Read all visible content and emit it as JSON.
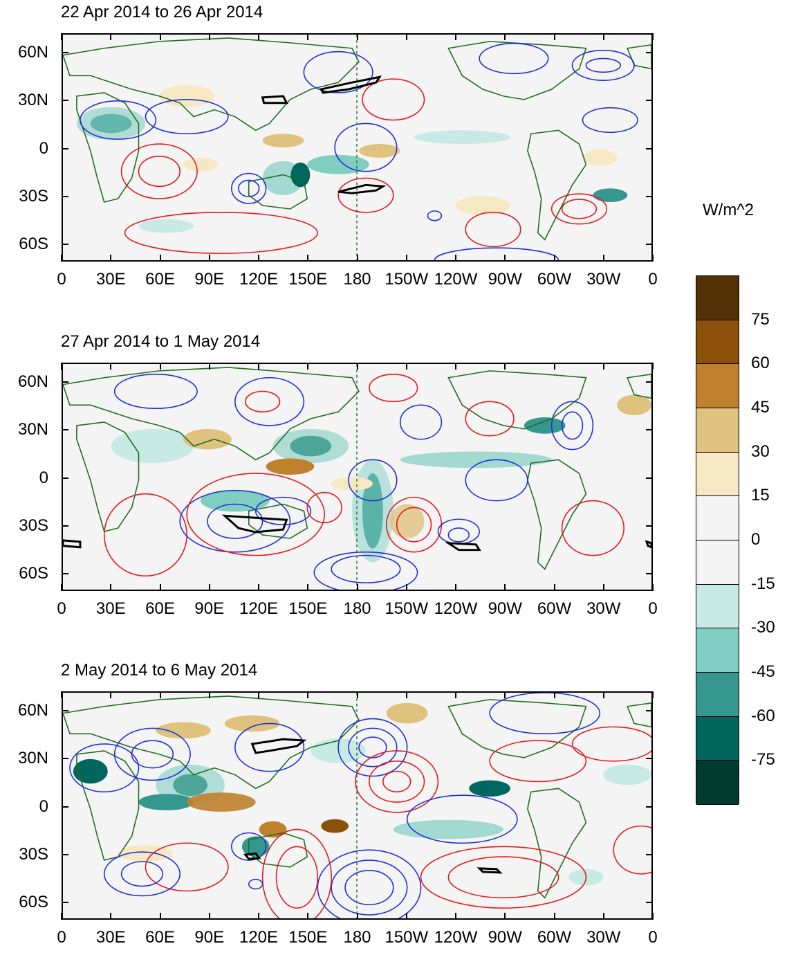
{
  "panels": [
    {
      "title": "22 Apr 2014 to 26 Apr 2014"
    },
    {
      "title": "27 Apr 2014 to 1 May 2014"
    },
    {
      "title": "2 May 2014 to 6 May 2014"
    }
  ],
  "lat_labels": [
    "60N",
    "30N",
    "0",
    "30S",
    "60S"
  ],
  "lon_labels": [
    "0",
    "30E",
    "60E",
    "90E",
    "120E",
    "150E",
    "180",
    "150W",
    "120W",
    "90W",
    "60W",
    "30W",
    "0"
  ],
  "colorbar": {
    "units": "W/m^2",
    "labels": [
      "75",
      "60",
      "45",
      "30",
      "15",
      "0",
      "-15",
      "-30",
      "-45",
      "-60",
      "-75"
    ],
    "colors": [
      "#543005",
      "#8c510a",
      "#bf812d",
      "#dfc27d",
      "#f6e8c3",
      "#f4f4f4",
      "#f4f4f4",
      "#c7eae5",
      "#80cdc1",
      "#35978f",
      "#01665e",
      "#003c30"
    ]
  },
  "colors": {
    "positive_contour": "#e41a1c",
    "negative_contour": "#1f2fd6",
    "coast": "#1e6e1e",
    "bold_contour": "#000000"
  }
}
